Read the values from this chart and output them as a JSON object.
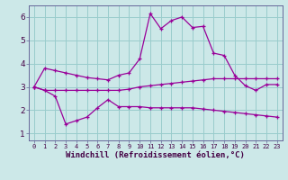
{
  "xlabel": "Windchill (Refroidissement éolien,°C)",
  "bg_color": "#cce8e8",
  "grid_color": "#99cccc",
  "line_color": "#990099",
  "x": [
    0,
    1,
    2,
    3,
    4,
    5,
    6,
    7,
    8,
    9,
    10,
    11,
    12,
    13,
    14,
    15,
    16,
    17,
    18,
    19,
    20,
    21,
    22,
    23
  ],
  "line1": [
    3.0,
    3.8,
    3.7,
    3.6,
    3.5,
    3.4,
    3.35,
    3.3,
    3.5,
    3.6,
    4.2,
    6.15,
    5.5,
    5.85,
    6.0,
    5.55,
    5.6,
    4.45,
    4.35,
    3.5,
    3.05,
    2.85,
    3.1,
    3.1
  ],
  "line2": [
    3.0,
    2.85,
    2.85,
    2.85,
    2.85,
    2.85,
    2.85,
    2.85,
    2.85,
    2.9,
    3.0,
    3.05,
    3.1,
    3.15,
    3.2,
    3.25,
    3.3,
    3.35,
    3.35,
    3.35,
    3.35,
    3.35,
    3.35,
    3.35
  ],
  "line3": [
    3.0,
    2.85,
    2.6,
    1.4,
    1.55,
    1.7,
    2.1,
    2.45,
    2.15,
    2.15,
    2.15,
    2.1,
    2.1,
    2.1,
    2.1,
    2.1,
    2.05,
    2.0,
    1.95,
    1.9,
    1.85,
    1.8,
    1.75,
    1.7
  ],
  "xlim": [
    -0.5,
    23.5
  ],
  "ylim": [
    0.7,
    6.5
  ],
  "yticks": [
    1,
    2,
    3,
    4,
    5,
    6
  ],
  "xtick_labels": [
    "0",
    "1",
    "2",
    "3",
    "4",
    "5",
    "6",
    "7",
    "8",
    "9",
    "10",
    "11",
    "12",
    "13",
    "14",
    "15",
    "16",
    "17",
    "18",
    "19",
    "20",
    "21",
    "22",
    "23"
  ],
  "spine_color": "#666699",
  "tick_label_fontsize": 5.0,
  "ytick_label_fontsize": 6.5,
  "xlabel_fontsize": 6.5,
  "line_width": 0.9,
  "marker_size": 3.5
}
